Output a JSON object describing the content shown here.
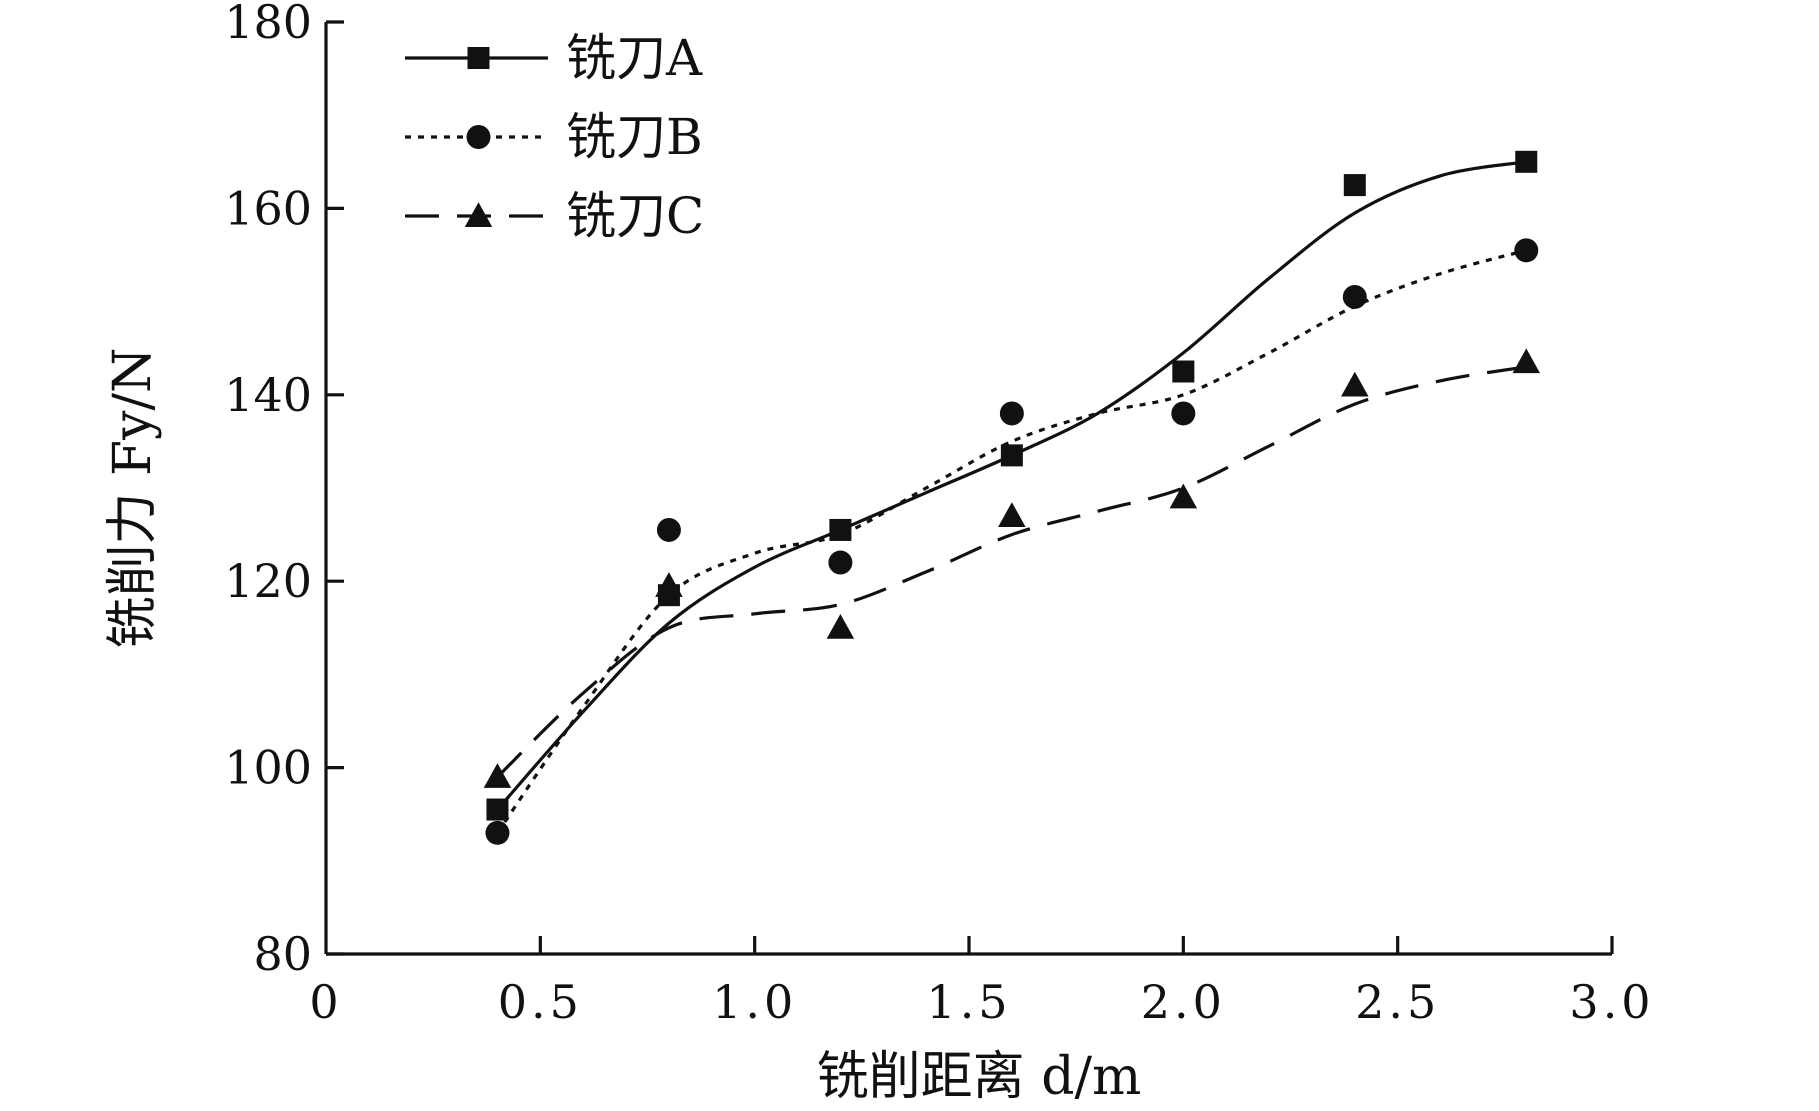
{
  "chart_data": {
    "type": "line",
    "title": "",
    "xlabel": "铣削距离 d/m",
    "ylabel": "铣削力 Fy/N",
    "xlim": [
      0,
      3.0
    ],
    "ylim": [
      80,
      180
    ],
    "xticks": [
      0,
      0.5,
      1.0,
      1.5,
      2.0,
      2.5,
      3.0
    ],
    "xtick_labels": [
      "0",
      "0.5",
      "1.0",
      "1.5",
      "2.0",
      "2.5",
      "3.0"
    ],
    "yticks": [
      80,
      100,
      120,
      140,
      160,
      180
    ],
    "ytick_labels": [
      "80",
      "100",
      "120",
      "140",
      "160",
      "180"
    ],
    "grid": false,
    "legend_position": "top-left",
    "x": [
      0.4,
      0.8,
      1.2,
      1.6,
      2.0,
      2.4,
      2.8
    ],
    "series": [
      {
        "name": "铣刀A",
        "marker": "square",
        "line_style": "solid",
        "values": [
          95.5,
          118.5,
          125.5,
          133.5,
          142.5,
          162.5,
          165
        ],
        "fit": [
          [
            0.4,
            95.5
          ],
          [
            0.6,
            106
          ],
          [
            0.8,
            115.5
          ],
          [
            1.0,
            121.5
          ],
          [
            1.2,
            125.5
          ],
          [
            1.4,
            129.5
          ],
          [
            1.6,
            133.5
          ],
          [
            1.8,
            138
          ],
          [
            2.0,
            144.5
          ],
          [
            2.2,
            152.5
          ],
          [
            2.4,
            159.5
          ],
          [
            2.6,
            163.5
          ],
          [
            2.8,
            165
          ]
        ]
      },
      {
        "name": "铣刀B",
        "marker": "circle",
        "line_style": "dotted",
        "values": [
          93,
          125.5,
          122,
          138,
          138,
          150.5,
          155.5
        ],
        "fit": [
          [
            0.4,
            93
          ],
          [
            0.6,
            106.5
          ],
          [
            0.8,
            118.5
          ],
          [
            1.0,
            123
          ],
          [
            1.2,
            125
          ],
          [
            1.4,
            130
          ],
          [
            1.6,
            135
          ],
          [
            1.8,
            138
          ],
          [
            2.0,
            140
          ],
          [
            2.2,
            144.5
          ],
          [
            2.4,
            149.5
          ],
          [
            2.6,
            153
          ],
          [
            2.8,
            155.5
          ]
        ]
      },
      {
        "name": "铣刀C",
        "marker": "triangle",
        "line_style": "dashed",
        "values": [
          99,
          119.5,
          115,
          127,
          129,
          141,
          143.5
        ],
        "fit": [
          [
            0.4,
            99
          ],
          [
            0.6,
            108
          ],
          [
            0.8,
            115
          ],
          [
            1.0,
            116.5
          ],
          [
            1.2,
            117.5
          ],
          [
            1.4,
            121
          ],
          [
            1.6,
            125
          ],
          [
            1.8,
            127.5
          ],
          [
            2.0,
            130
          ],
          [
            2.2,
            134.5
          ],
          [
            2.4,
            139
          ],
          [
            2.6,
            141.5
          ],
          [
            2.8,
            143
          ]
        ]
      }
    ]
  }
}
